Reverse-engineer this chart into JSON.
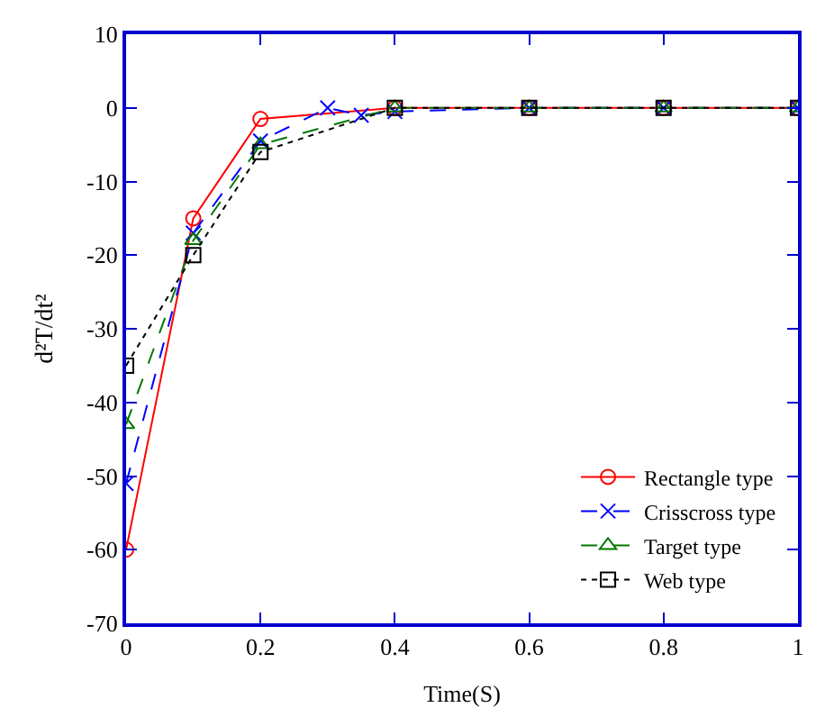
{
  "chart_data": {
    "type": "line",
    "xlabel": "Time(S)",
    "ylabel": "d²T/dt²",
    "xlim": [
      0,
      1
    ],
    "ylim": [
      -70,
      10
    ],
    "xticks": [
      0,
      0.2,
      0.4,
      0.6,
      0.8,
      1
    ],
    "yticks": [
      -70,
      -60,
      -50,
      -40,
      -30,
      -20,
      -10,
      0,
      10
    ],
    "legend": "bottom right",
    "series": [
      {
        "name": "Rectangle type",
        "color": "#ff0000",
        "marker": "circle",
        "line_style": "solid",
        "x": [
          0,
          0.1,
          0.2,
          0.4,
          0.6,
          0.8,
          1
        ],
        "values": [
          -60,
          -15,
          -1.5,
          0,
          0,
          0,
          0
        ]
      },
      {
        "name": "Crisscross type",
        "color": "#0000ff",
        "marker": "cross",
        "line_style": "dashed",
        "x": [
          0,
          0.1,
          0.2,
          0.3,
          0.35,
          0.4,
          0.6,
          0.8,
          1
        ],
        "values": [
          -51,
          -17,
          -4.5,
          0,
          -1,
          -0.5,
          0,
          0,
          0
        ]
      },
      {
        "name": "Target type",
        "color": "#007700",
        "marker": "triangle",
        "line_style": "dashed",
        "x": [
          0,
          0.1,
          0.2,
          0.4,
          0.6,
          0.8,
          1
        ],
        "values": [
          -43,
          -18,
          -5,
          0,
          0,
          0,
          0
        ]
      },
      {
        "name": "Web type",
        "color": "#000000",
        "marker": "square",
        "line_style": "dotted",
        "x": [
          0,
          0.1,
          0.2,
          0.4,
          0.6,
          0.8,
          1
        ],
        "values": [
          -35,
          -20,
          -6,
          0,
          0,
          0,
          0
        ]
      }
    ]
  }
}
